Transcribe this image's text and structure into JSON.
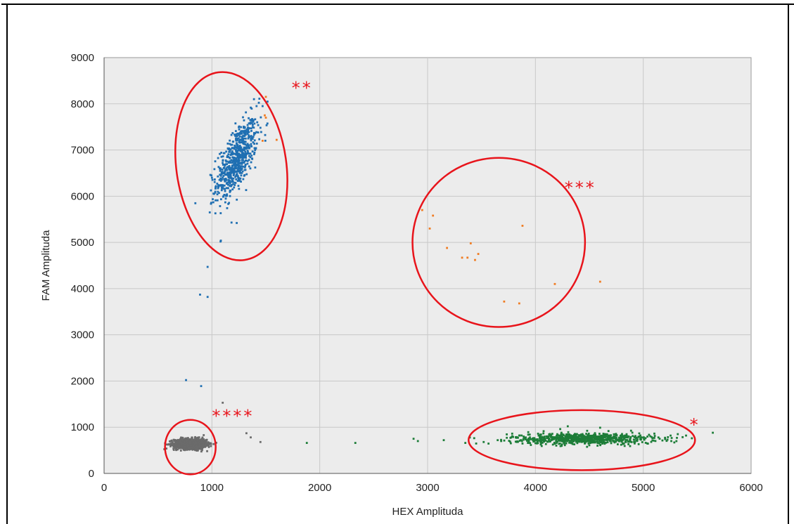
{
  "colors": {
    "blue": "#1f6fb2",
    "orange": "#f07c22",
    "gray": "#6b6b6b",
    "green": "#1d7d38",
    "annotation_red": "#e8141b",
    "plot_background": "#ececec",
    "grid": "#c8c8c8"
  },
  "chart_data": {
    "type": "scatter",
    "xlabel": "HEX Amplituda",
    "ylabel": "FAM Amplituda",
    "xlim": [
      0,
      6000
    ],
    "ylim": [
      0,
      9000
    ],
    "xticks": [
      0,
      1000,
      2000,
      3000,
      4000,
      5000,
      6000
    ],
    "yticks": [
      0,
      1000,
      2000,
      3000,
      4000,
      5000,
      6000,
      7000,
      8000,
      9000
    ],
    "grid": true,
    "series": [
      {
        "color": "blue",
        "cluster": {
          "cx": 1230,
          "cy": 6800,
          "sx": 95,
          "sy": 420,
          "rho": 0.65,
          "count": 650
        },
        "points": [
          [
            1000,
            6400
          ],
          [
            980,
            5650
          ],
          [
            1020,
            6050
          ],
          [
            1080,
            5020
          ],
          [
            1230,
            5420
          ],
          [
            960,
            4470
          ],
          [
            890,
            3870
          ],
          [
            960,
            3820
          ],
          [
            760,
            2020
          ],
          [
            900,
            1890
          ],
          [
            1440,
            8110
          ],
          [
            1390,
            8100
          ],
          [
            1470,
            7950
          ],
          [
            1420,
            7600
          ]
        ]
      },
      {
        "color": "orange",
        "points": [
          [
            1500,
            8150
          ],
          [
            1500,
            7700
          ],
          [
            1490,
            7750
          ],
          [
            1600,
            7220
          ],
          [
            1470,
            7200
          ],
          [
            2950,
            5700
          ],
          [
            3050,
            5580
          ],
          [
            3020,
            5300
          ],
          [
            3880,
            5360
          ],
          [
            3180,
            4880
          ],
          [
            3400,
            4980
          ],
          [
            3470,
            4750
          ],
          [
            3320,
            4670
          ],
          [
            3370,
            4670
          ],
          [
            3440,
            4620
          ],
          [
            4600,
            4150
          ],
          [
            4180,
            4100
          ],
          [
            3710,
            3720
          ],
          [
            3850,
            3680
          ]
        ]
      },
      {
        "color": "gray",
        "cluster": {
          "cx": 800,
          "cy": 640,
          "sx": 75,
          "sy": 55,
          "rho": 0.0,
          "count": 1100
        },
        "points": [
          [
            1100,
            1530
          ],
          [
            1320,
            870
          ],
          [
            1360,
            780
          ],
          [
            1450,
            680
          ]
        ]
      },
      {
        "color": "green",
        "cluster": {
          "cx": 4450,
          "cy": 750,
          "sx": 330,
          "sy": 60,
          "rho": 0.0,
          "count": 750
        },
        "points": [
          [
            1880,
            660
          ],
          [
            2330,
            660
          ],
          [
            2870,
            750
          ],
          [
            2910,
            700
          ],
          [
            3150,
            720
          ],
          [
            3350,
            660
          ],
          [
            3520,
            680
          ],
          [
            3650,
            720
          ],
          [
            5320,
            850
          ],
          [
            5260,
            700
          ],
          [
            4300,
            1020
          ],
          [
            4230,
            960
          ],
          [
            4600,
            990
          ]
        ]
      }
    ],
    "annotations": [
      {
        "label": "**",
        "ellipse": {
          "cx": 1180,
          "cy": 6650,
          "rx": 510,
          "ry": 2050,
          "angle": -8
        },
        "text_at": [
          1740,
          8220
        ]
      },
      {
        "label": "***",
        "ellipse": {
          "cx": 3660,
          "cy": 5000,
          "rx": 800,
          "ry": 1830,
          "angle": 0
        },
        "text_at": [
          4270,
          6060
        ]
      },
      {
        "label": "****",
        "ellipse": {
          "cx": 800,
          "cy": 570,
          "rx": 235,
          "ry": 590,
          "angle": 0
        },
        "text_at": [
          1000,
          1120
        ]
      },
      {
        "label": "*",
        "ellipse": {
          "cx": 4430,
          "cy": 720,
          "rx": 1050,
          "ry": 650,
          "angle": 0
        },
        "text_at": [
          5430,
          930
        ]
      }
    ]
  }
}
